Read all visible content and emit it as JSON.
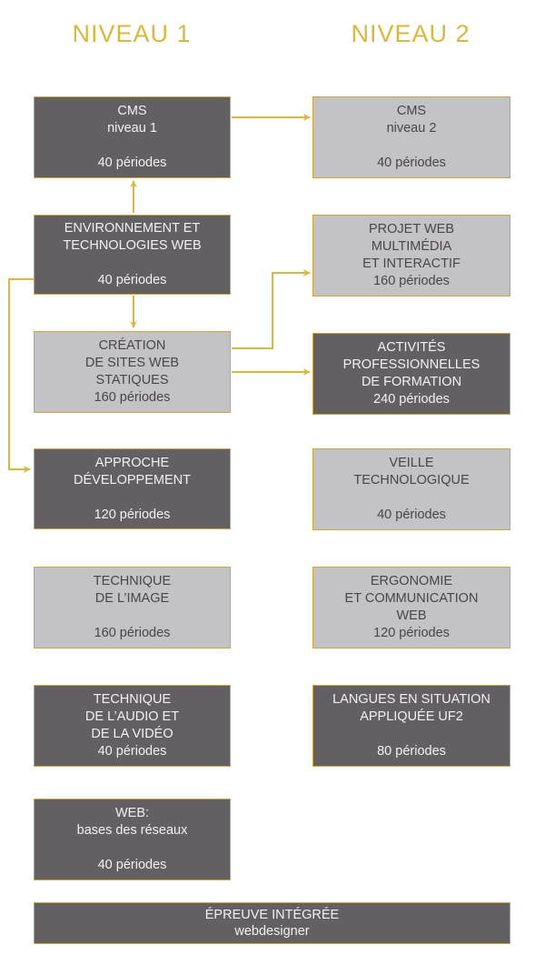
{
  "levels": {
    "level1": "NIVEAU 1",
    "level2": "NIVEAU 2"
  },
  "colors": {
    "accent": "#d8b93a",
    "dark_box": "#645f63",
    "light_box": "#c3c2c7"
  },
  "modules": {
    "cms1": {
      "l1": "CMS",
      "l2": "niveau 1",
      "periods": "40 périodes"
    },
    "env": {
      "l1": "ENVIRONNEMENT ET",
      "l2": "TECHNOLOGIES WEB",
      "periods": "40 périodes"
    },
    "creation": {
      "l1": "CRÉATION",
      "l2": "DE SITES WEB",
      "l3": "STATIQUES",
      "periods": "160 périodes"
    },
    "approche": {
      "l1": "APPROCHE",
      "l2": "DÉVELOPPEMENT",
      "periods": "120 périodes"
    },
    "image": {
      "l1": "TECHNIQUE",
      "l2": "DE L’IMAGE",
      "periods": "160 périodes"
    },
    "audio": {
      "l1": "TECHNIQUE",
      "l2": "DE L’AUDIO ET",
      "l3": "DE LA VIDÉO",
      "periods": "40 périodes"
    },
    "reseaux": {
      "l1": "WEB:",
      "l2": "bases des réseaux",
      "periods": "40 périodes"
    },
    "cms2": {
      "l1": "CMS",
      "l2": "niveau 2",
      "periods": "40 périodes"
    },
    "projet": {
      "l1": "PROJET WEB",
      "l2": "MULTIMÉDIA",
      "l3": "ET INTERACTIF",
      "periods": "160 périodes"
    },
    "activites": {
      "l1": "ACTIVITÉS",
      "l2": "PROFESSIONNELLES",
      "l3": "DE FORMATION",
      "periods": "240 périodes"
    },
    "veille": {
      "l1": "VEILLE",
      "l2": "TECHNOLOGIQUE",
      "periods": "40 périodes"
    },
    "ergonomie": {
      "l1": "ERGONOMIE",
      "l2": "ET COMMUNICATION",
      "l3": "WEB",
      "periods": "120 périodes"
    },
    "langues": {
      "l1": "LANGUES EN SITUATION",
      "l2": "APPLIQUÉE UF2",
      "periods": "80 périodes"
    }
  },
  "final": {
    "l1": "ÉPREUVE INTÉGRÉE",
    "l2": "webdesigner"
  }
}
